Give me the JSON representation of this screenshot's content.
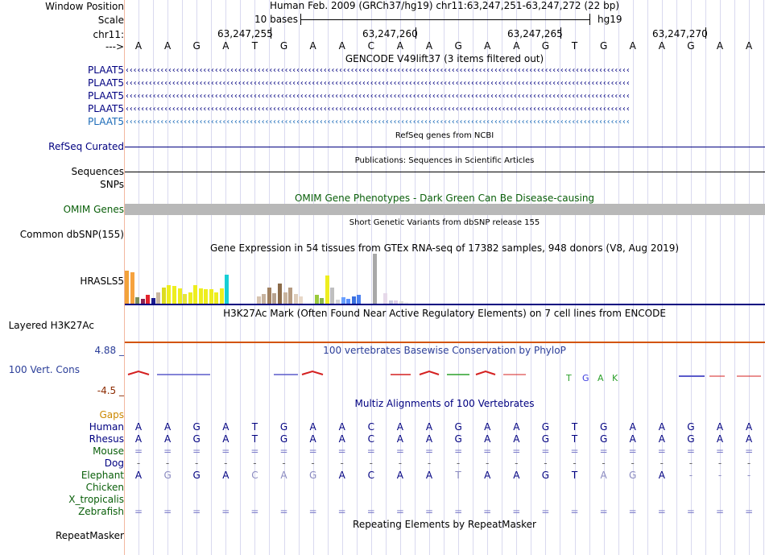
{
  "colors": {
    "navy": "#000080",
    "light_blue": "#1b6bb8",
    "green": "#0a5f0a",
    "orange": "#cc8800",
    "brown_line": "#d35400",
    "gray": "#b8b8b8",
    "track_title_blue": "#2b3e99"
  },
  "position": {
    "label_window": "Window Position",
    "label_scale": "Scale",
    "label_chrom": "chr11:",
    "label_arrow": "--->",
    "header": "Human Feb. 2009 (GRCh37/hg19)   chr11:63,247,251-63,247,272 (22 bp)",
    "scale_text": "10 bases",
    "assembly": "hg19",
    "ticks": [
      "63,247,255",
      "63,247,260",
      "63,247,265",
      "63,247,270"
    ]
  },
  "sequence": [
    "A",
    "A",
    "G",
    "A",
    "T",
    "G",
    "A",
    "A",
    "C",
    "A",
    "A",
    "G",
    "A",
    "A",
    "G",
    "T",
    "G",
    "A",
    "A",
    "G",
    "A",
    "A"
  ],
  "gencode": {
    "title": "GENCODE V49lift37 (3 items filtered out)",
    "genes": [
      "PLAAT5",
      "PLAAT5",
      "PLAAT5",
      "PLAAT5",
      "PLAAT5"
    ]
  },
  "tracks": {
    "refseq_title": "RefSeq genes from NCBI",
    "refseq_label": "RefSeq Curated",
    "pubs_title": "Publications: Sequences in Scientific Articles",
    "sequences_label": "Sequences",
    "snps_label": "SNPs",
    "omim_title": "OMIM Gene Phenotypes - Dark Green Can Be Disease-causing",
    "omim_label": "OMIM Genes",
    "dbsnp_title": "Short Genetic Variants from dbSNP release 155",
    "dbsnp_label": "Common dbSNP(155)",
    "gtex_title": "Gene Expression in 54 tissues from GTEx RNA-seq of 17382 samples, 948 donors (V8, Aug 2019)",
    "gtex_label": "HRASLS5",
    "h3k_title": "H3K27Ac Mark (Often Found Near Active Regulatory Elements) on 7 cell lines from ENCODE",
    "h3k_label": "Layered H3K27Ac",
    "cons_title": "100 vertebrates Basewise Conservation by PhyloP",
    "cons_label": "100 Vert. Cons",
    "cons_max": "4.88 _",
    "cons_min": "-4.5 _",
    "multiz_title": "Multiz Alignments of 100 Vertebrates",
    "gaps_label": "Gaps",
    "repeat_title": "Repeating Elements by RepeatMasker",
    "repeat_label": "RepeatMasker"
  },
  "gtex_values": [
    {
      "v": 40,
      "c": "#f2a23a"
    },
    {
      "v": 38,
      "c": "#f6a23f"
    },
    {
      "v": 8,
      "c": "#7a8c5a"
    },
    {
      "v": 6,
      "c": "#8b2252"
    },
    {
      "v": 11,
      "c": "#e3232c"
    },
    {
      "v": 7,
      "c": "#1b1b8f"
    },
    {
      "v": 14,
      "c": "#c9b7a0"
    },
    {
      "v": 19,
      "c": "#dcdc1f"
    },
    {
      "v": 22,
      "c": "#eeee1f"
    },
    {
      "v": 21,
      "c": "#eeee1f"
    },
    {
      "v": 18,
      "c": "#eeee1f"
    },
    {
      "v": 12,
      "c": "#e6e63a"
    },
    {
      "v": 14,
      "c": "#eeee1f"
    },
    {
      "v": 22,
      "c": "#eeee1f"
    },
    {
      "v": 18,
      "c": "#eeee1f"
    },
    {
      "v": 17,
      "c": "#eeee1f"
    },
    {
      "v": 17,
      "c": "#eeee1f"
    },
    {
      "v": 14,
      "c": "#eeee1f"
    },
    {
      "v": 18,
      "c": "#eeee1f"
    },
    {
      "v": 35,
      "c": "#17cfd6"
    },
    {
      "v": 0,
      "c": "#ffffff"
    },
    {
      "v": 0,
      "c": "#ffffff"
    },
    {
      "v": 0,
      "c": "#ffffff"
    },
    {
      "v": 0,
      "c": "#ffffff"
    },
    {
      "v": 0,
      "c": "#ffffff"
    },
    {
      "v": 9,
      "c": "#d6c3b0"
    },
    {
      "v": 12,
      "c": "#c7b39f"
    },
    {
      "v": 19,
      "c": "#a08060"
    },
    {
      "v": 13,
      "c": "#b7a28f"
    },
    {
      "v": 24,
      "c": "#8b6b4a"
    },
    {
      "v": 14,
      "c": "#c9b49e"
    },
    {
      "v": 19,
      "c": "#b69b82"
    },
    {
      "v": 12,
      "c": "#ddccbb"
    },
    {
      "v": 9,
      "c": "#e8d8c8"
    },
    {
      "v": 0,
      "c": "#ffffff"
    },
    {
      "v": 0,
      "c": "#ffffff"
    },
    {
      "v": 11,
      "c": "#9aca3c"
    },
    {
      "v": 7,
      "c": "#8db84a"
    },
    {
      "v": 34,
      "c": "#eeee1f"
    },
    {
      "v": 19,
      "c": "#bfbfbf"
    },
    {
      "v": 5,
      "c": "#d5d5d5"
    },
    {
      "v": 8,
      "c": "#6aa0ff"
    },
    {
      "v": 6,
      "c": "#5a90ff"
    },
    {
      "v": 9,
      "c": "#3a70e0"
    },
    {
      "v": 11,
      "c": "#4b80f0"
    },
    {
      "v": 0,
      "c": "#ffffff"
    },
    {
      "v": 0,
      "c": "#ffffff"
    },
    {
      "v": 60,
      "c": "#a8a8a8"
    },
    {
      "v": 0,
      "c": "#ffffff"
    },
    {
      "v": 13,
      "c": "#e6d9ea"
    },
    {
      "v": 4,
      "c": "#c9c9e0"
    },
    {
      "v": 4,
      "c": "#e0d0e8"
    },
    {
      "v": 3,
      "c": "#dddddd"
    },
    {
      "v": 2,
      "c": "#eeeeee"
    }
  ],
  "species": [
    {
      "name": "Human",
      "color": "#000080",
      "bases": [
        "A",
        "A",
        "G",
        "A",
        "T",
        "G",
        "A",
        "A",
        "C",
        "A",
        "A",
        "G",
        "A",
        "A",
        "G",
        "T",
        "G",
        "A",
        "A",
        "G",
        "A",
        "A"
      ],
      "bcolor": "#000080"
    },
    {
      "name": "Rhesus",
      "color": "#000080",
      "bases": [
        "A",
        "A",
        "G",
        "A",
        "T",
        "G",
        "A",
        "A",
        "C",
        "A",
        "A",
        "G",
        "A",
        "A",
        "G",
        "T",
        "G",
        "A",
        "A",
        "G",
        "A",
        "A"
      ],
      "bcolor": "#000080"
    },
    {
      "name": "Mouse",
      "color": "#0a5f0a",
      "bases": [
        "=",
        "=",
        "=",
        "=",
        "=",
        "=",
        "=",
        "=",
        "=",
        "=",
        "=",
        "=",
        "=",
        "=",
        "=",
        "=",
        "=",
        "=",
        "=",
        "=",
        "=",
        "="
      ],
      "bcolor": "#7a7ac8"
    },
    {
      "name": "Dog",
      "color": "#000080",
      "bases": [
        "-",
        "-",
        "-",
        "-",
        "-",
        "-",
        "-",
        "-",
        "-",
        "-",
        "-",
        "-",
        "-",
        "-",
        "-",
        "-",
        "-",
        "-",
        "-",
        "-",
        "-",
        "-"
      ],
      "bcolor": "#666666"
    },
    {
      "name": "Elephant",
      "color": "#0a5f0a",
      "bases": [
        "A",
        "G",
        "G",
        "A",
        "C",
        "A",
        "G",
        "A",
        "C",
        "A",
        "A",
        "T",
        "A",
        "A",
        "G",
        "T",
        "A",
        "G",
        "A",
        "-",
        "-",
        "-"
      ],
      "bcolor": "#000080"
    },
    {
      "name": "Chicken",
      "color": "#0a5f0a",
      "bases": [
        "",
        "",
        "",
        "",
        "",
        "",
        "",
        "",
        "",
        "",
        "",
        "",
        "",
        "",
        "",
        "",
        "",
        "",
        "",
        "",
        "",
        ""
      ],
      "bcolor": "#000080"
    },
    {
      "name": "X_tropicalis",
      "color": "#0a5f0a",
      "bases": [
        "",
        "",
        "",
        "",
        "",
        "",
        "",
        "",
        "",
        "",
        "",
        "",
        "",
        "",
        "",
        "",
        "",
        "",
        "",
        "",
        "",
        ""
      ],
      "bcolor": "#000080"
    },
    {
      "name": "Zebrafish",
      "color": "#0a5f0a",
      "bases": [
        "=",
        "=",
        "=",
        "=",
        "=",
        "=",
        "=",
        "=",
        "=",
        "=",
        "=",
        "=",
        "=",
        "=",
        "=",
        "=",
        "=",
        "=",
        "=",
        "=",
        "=",
        "="
      ],
      "bcolor": "#7a7ac8"
    }
  ]
}
